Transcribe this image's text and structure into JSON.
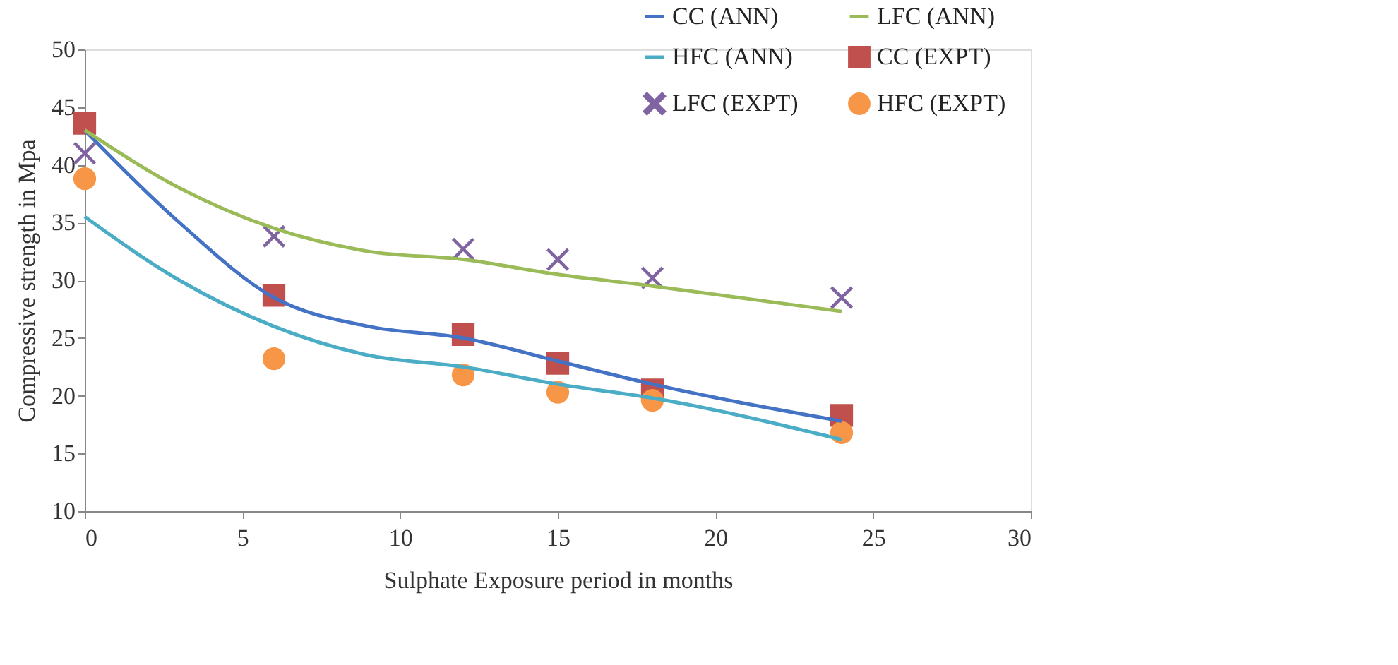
{
  "chart_data": {
    "type": "line",
    "xlabel": "Sulphate Exposure period in months",
    "ylabel": "Compressive strength in Mpa",
    "xlim": [
      0,
      30
    ],
    "xticks": [
      0,
      5,
      10,
      15,
      20,
      25,
      30
    ],
    "ylim": [
      10,
      50
    ],
    "yticks": [
      10,
      15,
      20,
      25,
      30,
      35,
      40,
      45,
      50
    ],
    "grid": false,
    "legend": "top right",
    "series": [
      {
        "name": "CC (ANN)",
        "color": "#4472c4",
        "marker": "none",
        "line_style": "solid",
        "x": [
          0,
          3,
          6,
          9,
          12,
          15,
          18,
          24
        ],
        "values": [
          43,
          35,
          28.5,
          26,
          25,
          23,
          21,
          17.8
        ]
      },
      {
        "name": "LFC (ANN)",
        "color": "#9bbb59",
        "marker": "none",
        "line_style": "solid",
        "x": [
          0,
          3,
          6,
          9,
          12,
          15,
          18,
          24
        ],
        "values": [
          43,
          38,
          34.5,
          32.5,
          31.8,
          30.5,
          29.5,
          27.3
        ]
      },
      {
        "name": "HFC (ANN)",
        "color": "#4bacc6",
        "marker": "none",
        "line_style": "solid",
        "x": [
          0,
          3,
          6,
          9,
          12,
          15,
          18,
          24
        ],
        "values": [
          35.5,
          30,
          26,
          23.5,
          22.5,
          21,
          19.8,
          16.2
        ]
      },
      {
        "name": "CC (EXPT)",
        "type": "scatter",
        "color": "#c0504d",
        "marker": "square",
        "x": [
          0,
          6,
          12,
          15,
          18,
          24
        ],
        "values": [
          43.6,
          28.7,
          25.3,
          22.8,
          20.5,
          18.3
        ]
      },
      {
        "name": "LFC (EXPT)",
        "type": "scatter",
        "color": "#8064a2",
        "marker": "cross",
        "x": [
          0,
          6,
          12,
          15,
          18,
          24
        ],
        "values": [
          41,
          33.8,
          32.7,
          31.8,
          30.2,
          28.5
        ]
      },
      {
        "name": "HFC (EXPT)",
        "type": "scatter",
        "color": "#f79646",
        "marker": "circle",
        "x": [
          0,
          6,
          12,
          15,
          18,
          24
        ],
        "values": [
          38.8,
          23.2,
          21.8,
          20.3,
          19.6,
          16.8
        ]
      }
    ]
  }
}
